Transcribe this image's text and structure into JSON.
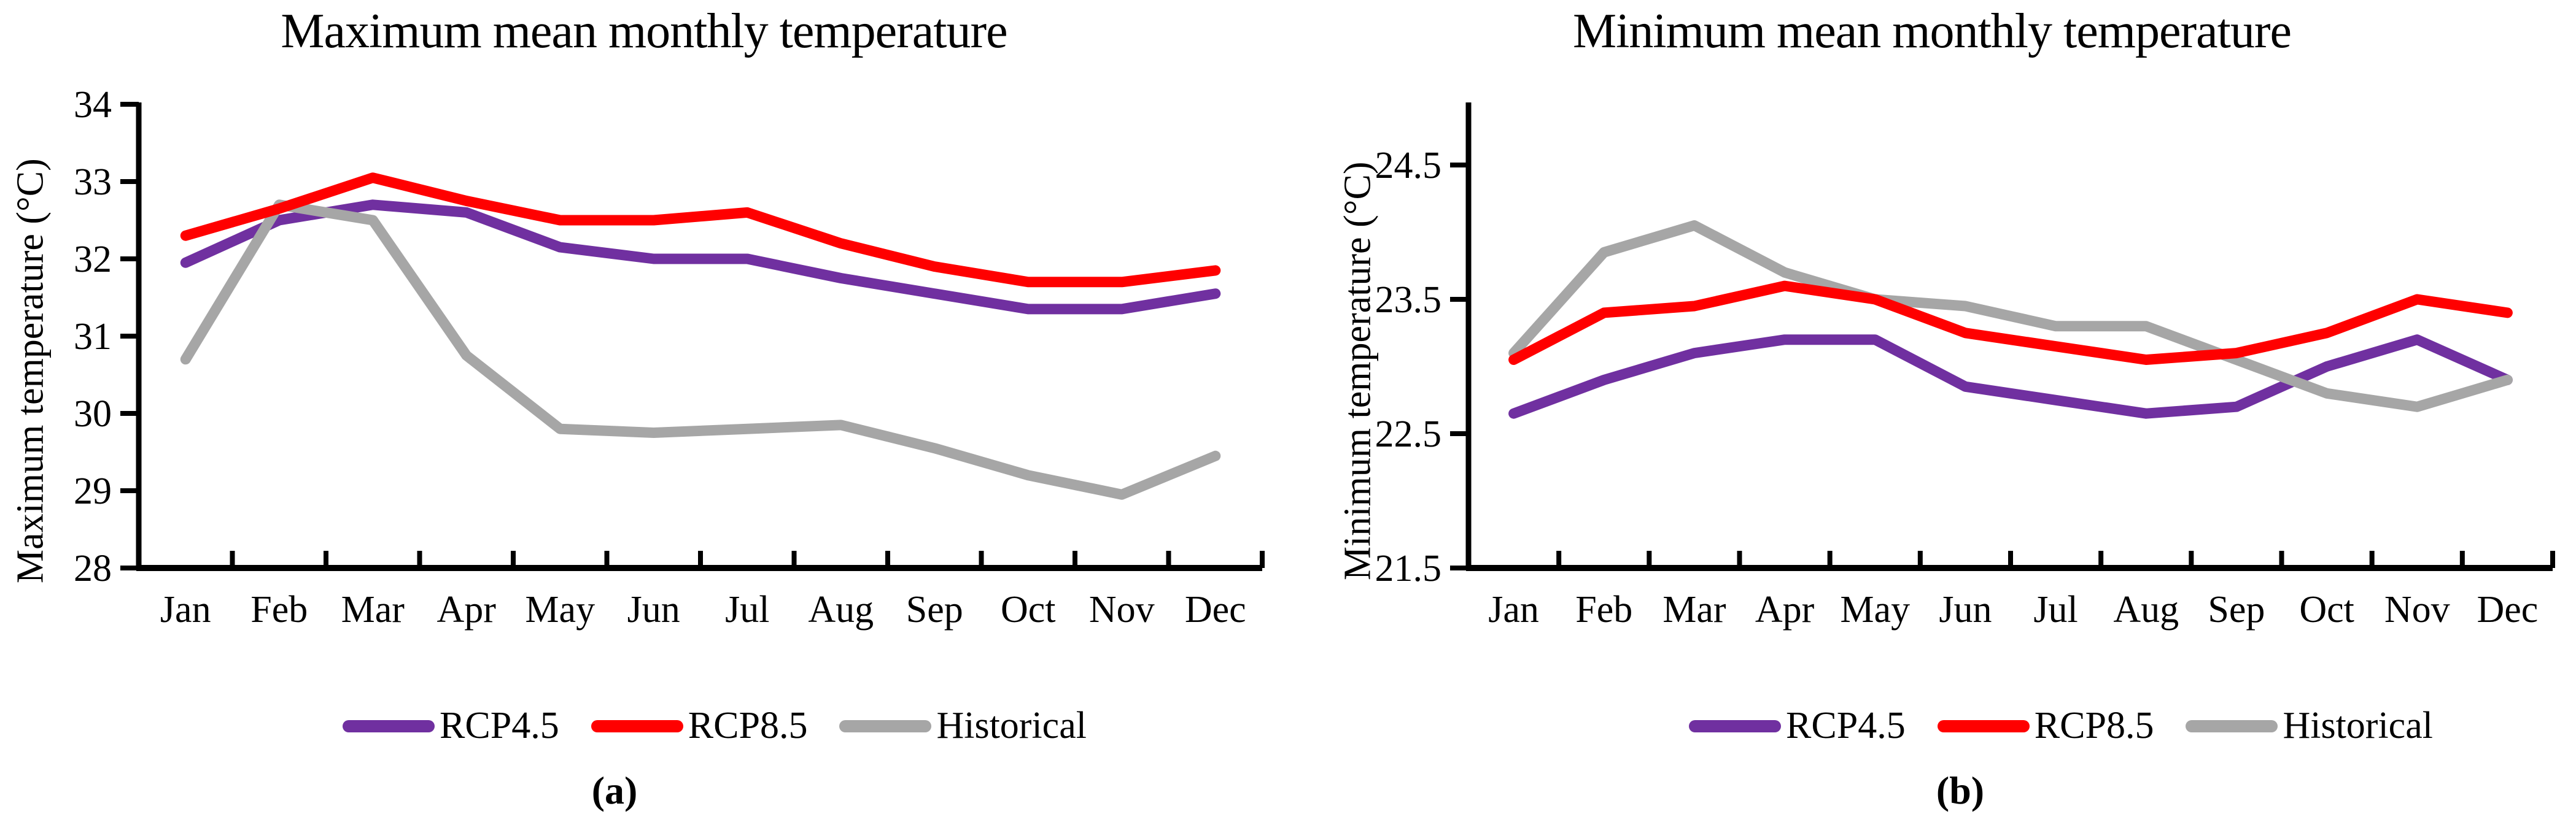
{
  "figure": {
    "type": "two-panel line figure",
    "background": "#ffffff",
    "text_color": "#000000",
    "axis_color": "#000000"
  },
  "chart_data": [
    {
      "type": "line",
      "title": "Maximum mean monthly temperature",
      "ylabel": "Maximum temperature (°C)",
      "xlabel": "",
      "caption": "(a)",
      "categories": [
        "Jan",
        "Feb",
        "Mar",
        "Apr",
        "May",
        "Jun",
        "Jul",
        "Aug",
        "Sep",
        "Oct",
        "Nov",
        "Dec"
      ],
      "ylim": [
        28,
        34
      ],
      "yticks": [
        28,
        29,
        30,
        31,
        32,
        33,
        34
      ],
      "grid": false,
      "legend_position": "bottom",
      "series": [
        {
          "name": "RCP4.5",
          "color": "#7030A0",
          "values": [
            31.95,
            32.5,
            32.7,
            32.6,
            32.15,
            32.0,
            32.0,
            31.75,
            31.55,
            31.35,
            31.35,
            31.55
          ]
        },
        {
          "name": "RCP8.5",
          "color": "#FF0000",
          "values": [
            32.3,
            32.65,
            33.05,
            32.75,
            32.5,
            32.5,
            32.6,
            32.2,
            31.9,
            31.7,
            31.7,
            31.85
          ]
        },
        {
          "name": "Historical",
          "color": "#A6A6A6",
          "values": [
            30.7,
            32.7,
            32.5,
            30.75,
            29.8,
            29.75,
            29.8,
            29.85,
            29.55,
            29.2,
            28.95,
            29.45
          ]
        }
      ]
    },
    {
      "type": "line",
      "title": "Minimum mean monthly temperature",
      "ylabel": "Minimum temperature (°C)",
      "xlabel": "",
      "caption": "(b)",
      "categories": [
        "Jan",
        "Feb",
        "Mar",
        "Apr",
        "May",
        "Jun",
        "Jul",
        "Aug",
        "Sep",
        "Oct",
        "Nov",
        "Dec"
      ],
      "ylim": [
        21.5,
        24.5
      ],
      "yticks": [
        21.5,
        22.5,
        23.5,
        24.5
      ],
      "grid": false,
      "legend_position": "bottom",
      "series": [
        {
          "name": "RCP4.5",
          "color": "#7030A0",
          "values": [
            22.65,
            22.9,
            23.1,
            23.2,
            23.2,
            22.85,
            22.75,
            22.65,
            22.7,
            23.0,
            23.2,
            22.9
          ]
        },
        {
          "name": "RCP8.5",
          "color": "#FF0000",
          "values": [
            23.05,
            23.4,
            23.45,
            23.6,
            23.5,
            23.25,
            23.15,
            23.05,
            23.1,
            23.25,
            23.5,
            23.4
          ]
        },
        {
          "name": "Historical",
          "color": "#A6A6A6",
          "values": [
            23.1,
            23.85,
            24.05,
            23.7,
            23.5,
            23.45,
            23.3,
            23.3,
            23.05,
            22.8,
            22.7,
            22.9
          ]
        }
      ]
    }
  ]
}
